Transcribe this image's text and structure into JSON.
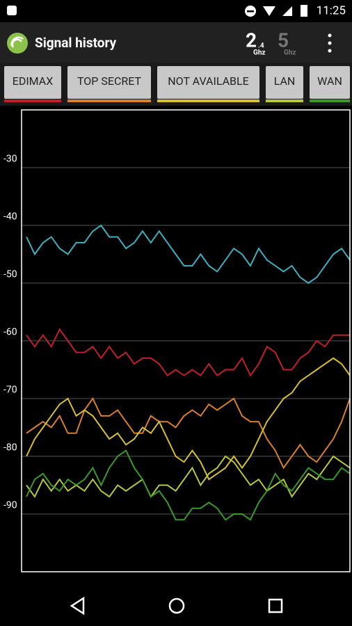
{
  "status_bar": {
    "time": "11:25"
  },
  "app_bar": {
    "title": "Signal history",
    "band_24": {
      "number": "2",
      "decimal": ".4",
      "unit": "Ghz"
    },
    "band_5": {
      "number": "5",
      "unit": "Ghz"
    }
  },
  "chart_data": {
    "type": "line",
    "ylim": [
      -100,
      -20
    ],
    "yticks": [
      -30,
      -40,
      -50,
      -60,
      -70,
      -80,
      -90
    ],
    "grid": true,
    "series": [
      {
        "color": "#3fb0c0",
        "values": [
          -42,
          -45,
          -43,
          -42,
          -44,
          -45,
          -43,
          -43,
          -41,
          -40,
          -42,
          -42,
          -44,
          -43,
          -41,
          -43,
          -41,
          -43,
          -45,
          -47,
          -47,
          -45,
          -47,
          -48,
          -46,
          -44,
          -45,
          -47,
          -44,
          -46,
          -47,
          -48,
          -47,
          -49,
          -50,
          -49,
          -47,
          -45,
          -44,
          -46
        ]
      },
      {
        "name": "EDIMAX",
        "color": "#c0202a",
        "values": [
          -59,
          -61,
          -59,
          -61,
          -58,
          -60,
          -62,
          -62,
          -61,
          -63,
          -61,
          -63,
          -62,
          -64,
          -63,
          -63,
          -64,
          -66,
          -65,
          -66,
          -65,
          -66,
          -64,
          -66,
          -65,
          -65,
          -63,
          -66,
          -64,
          -61,
          -62,
          -65,
          -65,
          -63,
          -62,
          -60,
          -61,
          -59,
          -59,
          -59
        ]
      },
      {
        "name": "TOP SECRET",
        "color": "#d8802a",
        "values": [
          -76,
          -75,
          -74,
          -75,
          -73,
          -76,
          -76,
          -72,
          -70,
          -73,
          -73,
          -72,
          -74,
          -76,
          -76,
          -73,
          -74,
          -74,
          -75,
          -73,
          -72,
          -73,
          -71,
          -72,
          -71,
          -70,
          -73,
          -74,
          -74,
          -77,
          -79,
          -82,
          -80,
          -78,
          -80,
          -81,
          -79,
          -77,
          -74,
          -70
        ]
      },
      {
        "name": "NOT AVAILABLE",
        "color": "#d8c030",
        "values": [
          -80,
          -77,
          -75,
          -73,
          -71,
          -70,
          -73,
          -72,
          -73,
          -75,
          -77,
          -76,
          -78,
          -77,
          -75,
          -76,
          -74,
          -77,
          -80,
          -81,
          -79,
          -81,
          -84,
          -83,
          -82,
          -80,
          -82,
          -80,
          -77,
          -74,
          -72,
          -70,
          -69,
          -67,
          -66,
          -65,
          -64,
          -63,
          -64,
          -66
        ]
      },
      {
        "name": "LAN",
        "color": "#b8c838",
        "values": [
          -85,
          -87,
          -84,
          -86,
          -84,
          -86,
          -85,
          -86,
          -84,
          -86,
          -87,
          -85,
          -86,
          -85,
          -84,
          -87,
          -85,
          -85,
          -86,
          -84,
          -82,
          -85,
          -83,
          -82,
          -80,
          -81,
          -83,
          -85,
          -84,
          -86,
          -85,
          -84,
          -87,
          -85,
          -83,
          -84,
          -82,
          -80,
          -81,
          -82
        ]
      },
      {
        "name": "WAN",
        "color": "#3a9a2a",
        "values": [
          -87,
          -84,
          -83,
          -85,
          -86,
          -84,
          -85,
          -84,
          -82,
          -85,
          -82,
          -80,
          -79,
          -82,
          -84,
          -87,
          -86,
          -88,
          -91,
          -91,
          -89,
          -89,
          -88,
          -89,
          -91,
          -90,
          -90,
          -91,
          -88,
          -86,
          -83,
          -85,
          -86,
          -84,
          -82,
          -83,
          -84,
          -84,
          -82,
          -83
        ]
      }
    ]
  }
}
